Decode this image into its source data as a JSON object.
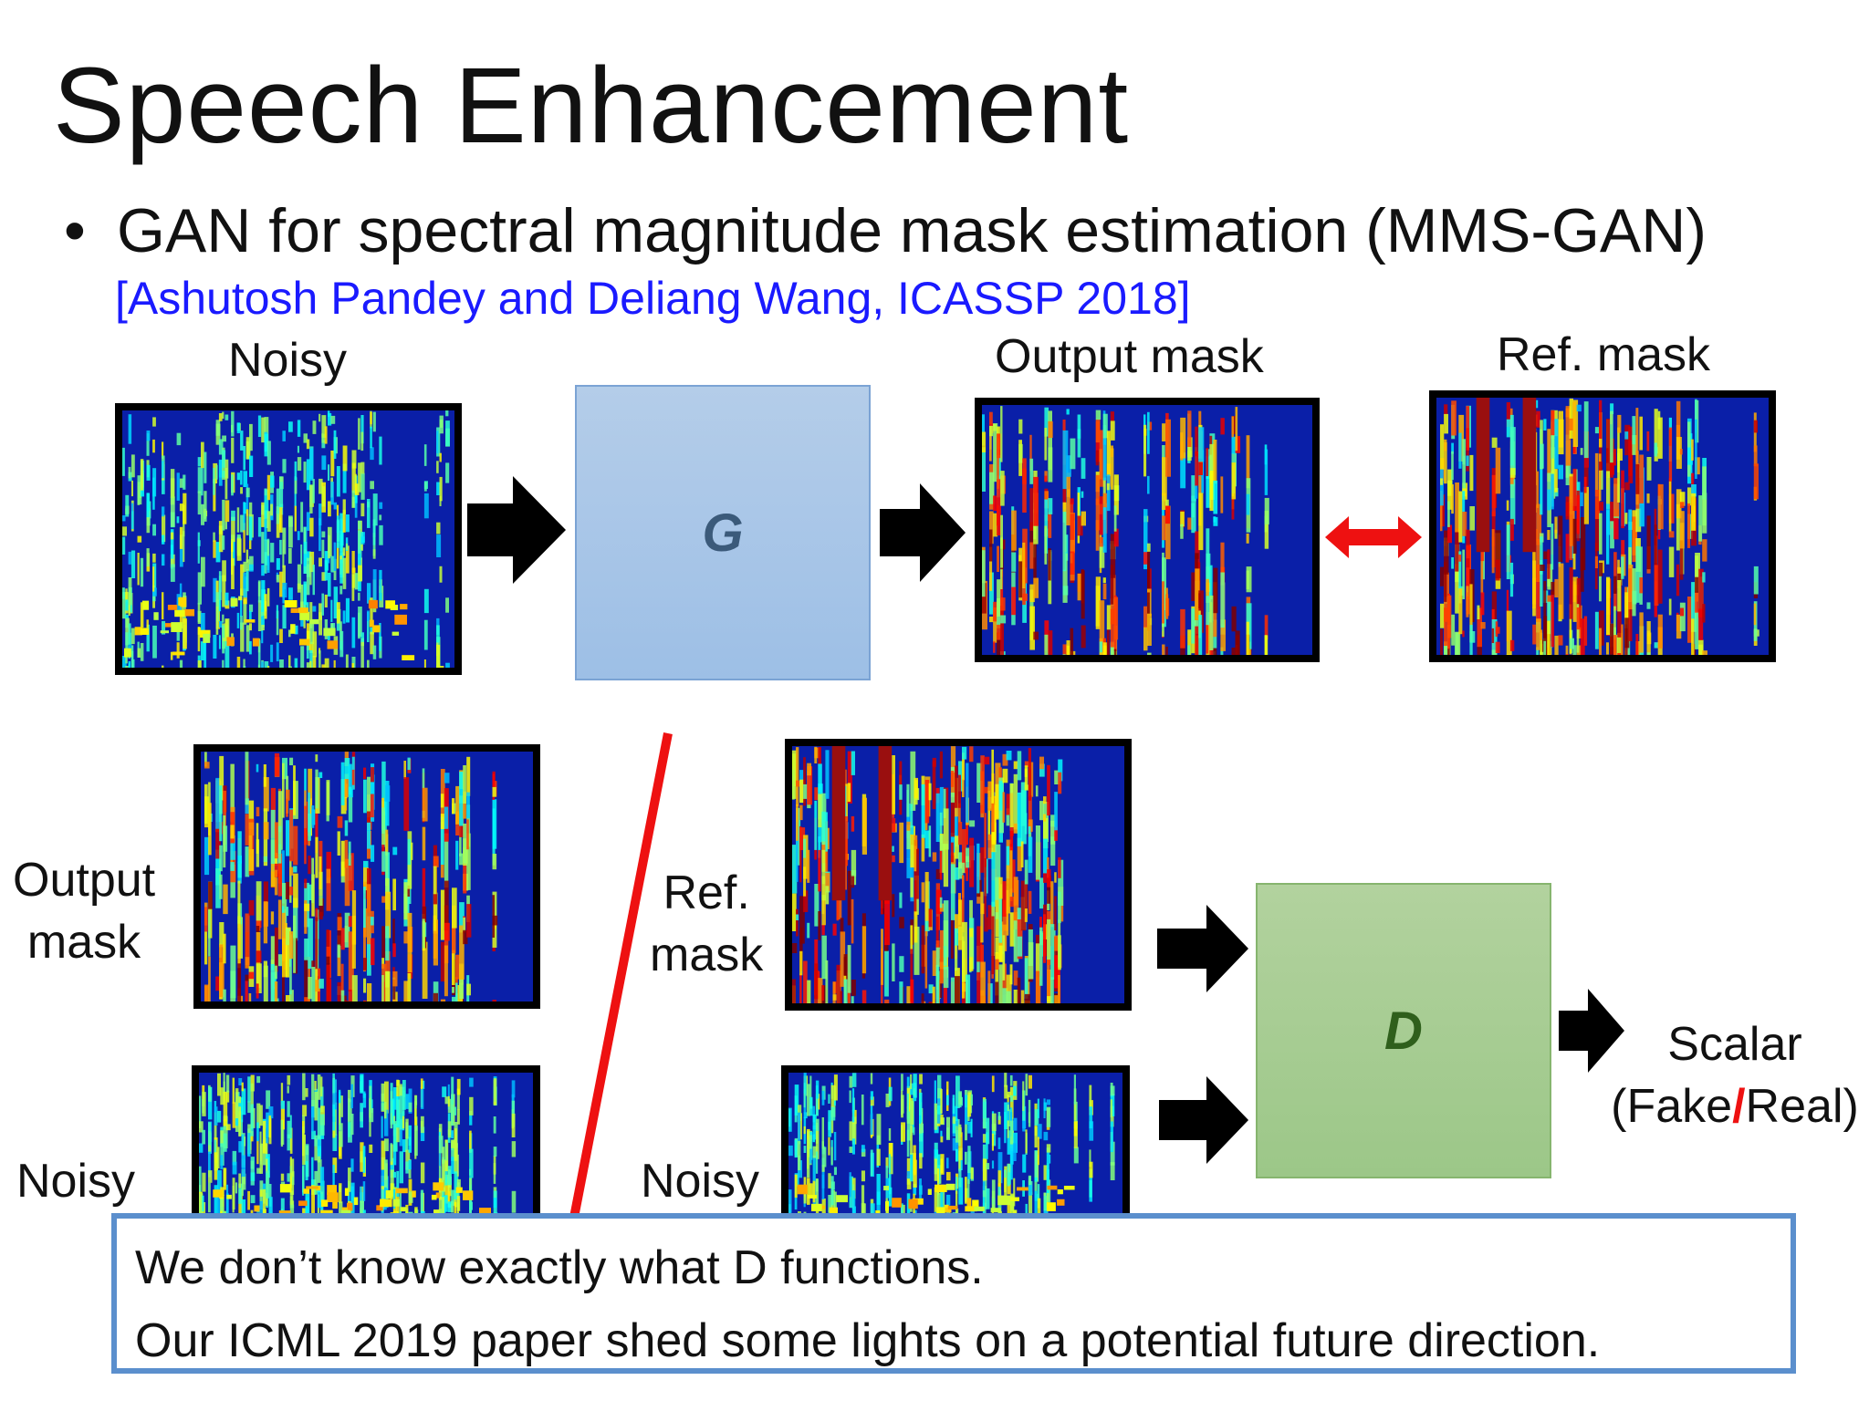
{
  "slide": {
    "title": "Speech Enhancement",
    "bullet": "GAN for spectral magnitude mask estimation (MMS-GAN)",
    "bullet_symbol": "•",
    "citation": "[Ashutosh Pandey and Deliang Wang, ICASSP 2018]"
  },
  "top_row": {
    "noisy_label": "Noisy",
    "output_mask_label": "Output mask",
    "ref_mask_label": "Ref. mask",
    "generator_label": "G"
  },
  "bottom_left": {
    "output_mask_label_line1": "Output",
    "output_mask_label_line2": "mask",
    "noisy_label": "Noisy"
  },
  "bottom_right": {
    "ref_mask_label_line1": "Ref.",
    "ref_mask_label_line2": "mask",
    "noisy_label": "Noisy"
  },
  "discriminator": {
    "label": "D",
    "output_line1": "Scalar",
    "output_open": "(Fake",
    "output_slash": "/",
    "output_close": "Real)"
  },
  "note": {
    "line1": "We don’t know exactly what D functions.",
    "line2": "Our ICML 2019 paper shed some lights on a potential future direction."
  },
  "colors": {
    "spectrogram_base": "#0a1fa8",
    "generator_box": "#a9c7e8",
    "discriminator_box": "#a6cd91",
    "red_accent": "#ee1111",
    "citation": "#1a1aff",
    "note_border": "#5b8fcd"
  }
}
